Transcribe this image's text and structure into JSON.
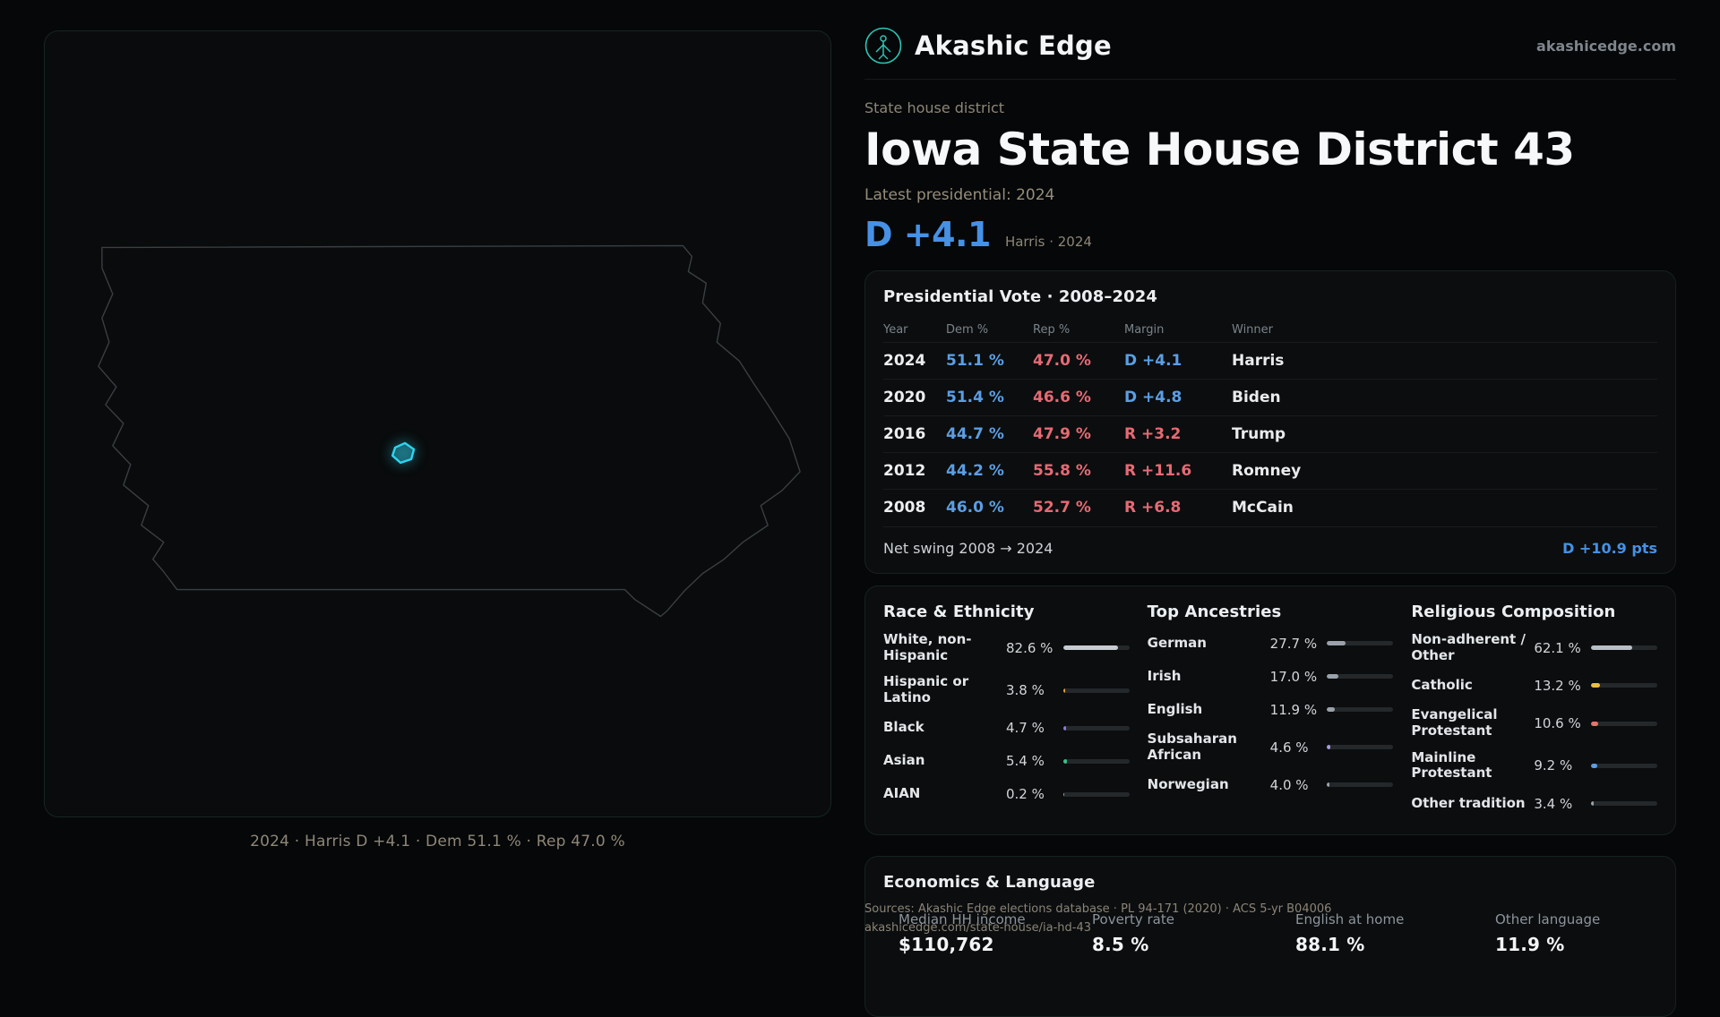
{
  "colors": {
    "dem": "#5b9ee4",
    "rep": "#e66a75",
    "dem_bright": "#4691e5"
  },
  "header": {
    "brand": "Akashic Edge",
    "site": "akashicedge.com"
  },
  "hero": {
    "eyebrow": "State house district",
    "title": "Iowa State House District 43",
    "latest_label": "Latest presidential: 2024",
    "margin": "D +4.1",
    "margin_note": "Harris · 2024"
  },
  "map": {
    "caption": "2024 · Harris D +4.1 · Dem 51.1 % · Rep 47.0 %",
    "highlight_color": "#2fd5f0"
  },
  "presidential": {
    "title": "Presidential Vote · 2008–2024",
    "columns": [
      "Year",
      "Dem %",
      "Rep %",
      "Margin",
      "Winner"
    ],
    "rows": [
      {
        "year": "2024",
        "dem": "51.1 %",
        "rep": "47.0 %",
        "margin": "D +4.1",
        "margin_color": "#5b9ee4",
        "winner": "Harris"
      },
      {
        "year": "2020",
        "dem": "51.4 %",
        "rep": "46.6 %",
        "margin": "D +4.8",
        "margin_color": "#5b9ee4",
        "winner": "Biden"
      },
      {
        "year": "2016",
        "dem": "44.7 %",
        "rep": "47.9 %",
        "margin": "R +3.2",
        "margin_color": "#e66a75",
        "winner": "Trump"
      },
      {
        "year": "2012",
        "dem": "44.2 %",
        "rep": "55.8 %",
        "margin": "R +11.6",
        "margin_color": "#e66a75",
        "winner": "Romney"
      },
      {
        "year": "2008",
        "dem": "46.0 %",
        "rep": "52.7 %",
        "margin": "R +6.8",
        "margin_color": "#e66a75",
        "winner": "McCain"
      }
    ],
    "net_swing_label": "Net swing 2008 → 2024",
    "net_swing_value": "D +10.9 pts"
  },
  "demographics": {
    "race": {
      "title": "Race & Ethnicity",
      "rows": [
        {
          "label": "White, non-Hispanic",
          "value": "82.6 %",
          "pct": 82.6,
          "color": "#c6ccd2"
        },
        {
          "label": "Hispanic or Latino",
          "value": "3.8 %",
          "pct": 3.8,
          "color": "#e8a33d"
        },
        {
          "label": "Black",
          "value": "4.7 %",
          "pct": 4.7,
          "color": "#8b7ae8"
        },
        {
          "label": "Asian",
          "value": "5.4 %",
          "pct": 5.4,
          "color": "#3dbf8a"
        },
        {
          "label": "AIAN",
          "value": "0.2 %",
          "pct": 0.2,
          "color": "#9aa2ab"
        }
      ]
    },
    "ancestries": {
      "title": "Top Ancestries",
      "rows": [
        {
          "label": "German",
          "value": "27.7 %",
          "pct": 27.7,
          "color": "#9aa2ab"
        },
        {
          "label": "Irish",
          "value": "17.0 %",
          "pct": 17.0,
          "color": "#9aa2ab"
        },
        {
          "label": "English",
          "value": "11.9 %",
          "pct": 11.9,
          "color": "#9aa2ab"
        },
        {
          "label": "Subsaharan African",
          "value": "4.6 %",
          "pct": 4.6,
          "color": "#a79ae0"
        },
        {
          "label": "Norwegian",
          "value": "4.0 %",
          "pct": 4.0,
          "color": "#9aa2ab"
        }
      ]
    },
    "religion": {
      "title": "Religious Composition",
      "rows": [
        {
          "label": "Non-adherent / Other",
          "value": "62.1 %",
          "pct": 62.1,
          "color": "#b9bfc6"
        },
        {
          "label": "Catholic",
          "value": "13.2 %",
          "pct": 13.2,
          "color": "#e6c23d"
        },
        {
          "label": "Evangelical Protestant",
          "value": "10.6 %",
          "pct": 10.6,
          "color": "#e8746a"
        },
        {
          "label": "Mainline Protestant",
          "value": "9.2 %",
          "pct": 9.2,
          "color": "#5b9ee4"
        },
        {
          "label": "Other tradition",
          "value": "3.4 %",
          "pct": 3.4,
          "color": "#9aa2ab"
        }
      ]
    }
  },
  "economics": {
    "title": "Economics & Language",
    "stats": [
      {
        "label": "Median HH income",
        "value": "$110,762"
      },
      {
        "label": "Poverty rate",
        "value": "8.5 %"
      },
      {
        "label": "English at home",
        "value": "88.1 %"
      },
      {
        "label": "Other language",
        "value": "11.9 %"
      }
    ]
  },
  "sources": {
    "line1": "Sources: Akashic Edge elections database · PL 94-171 (2020) · ACS 5-yr B04006",
    "line2": "akashicedge.com/state-house/ia-hd-43"
  }
}
